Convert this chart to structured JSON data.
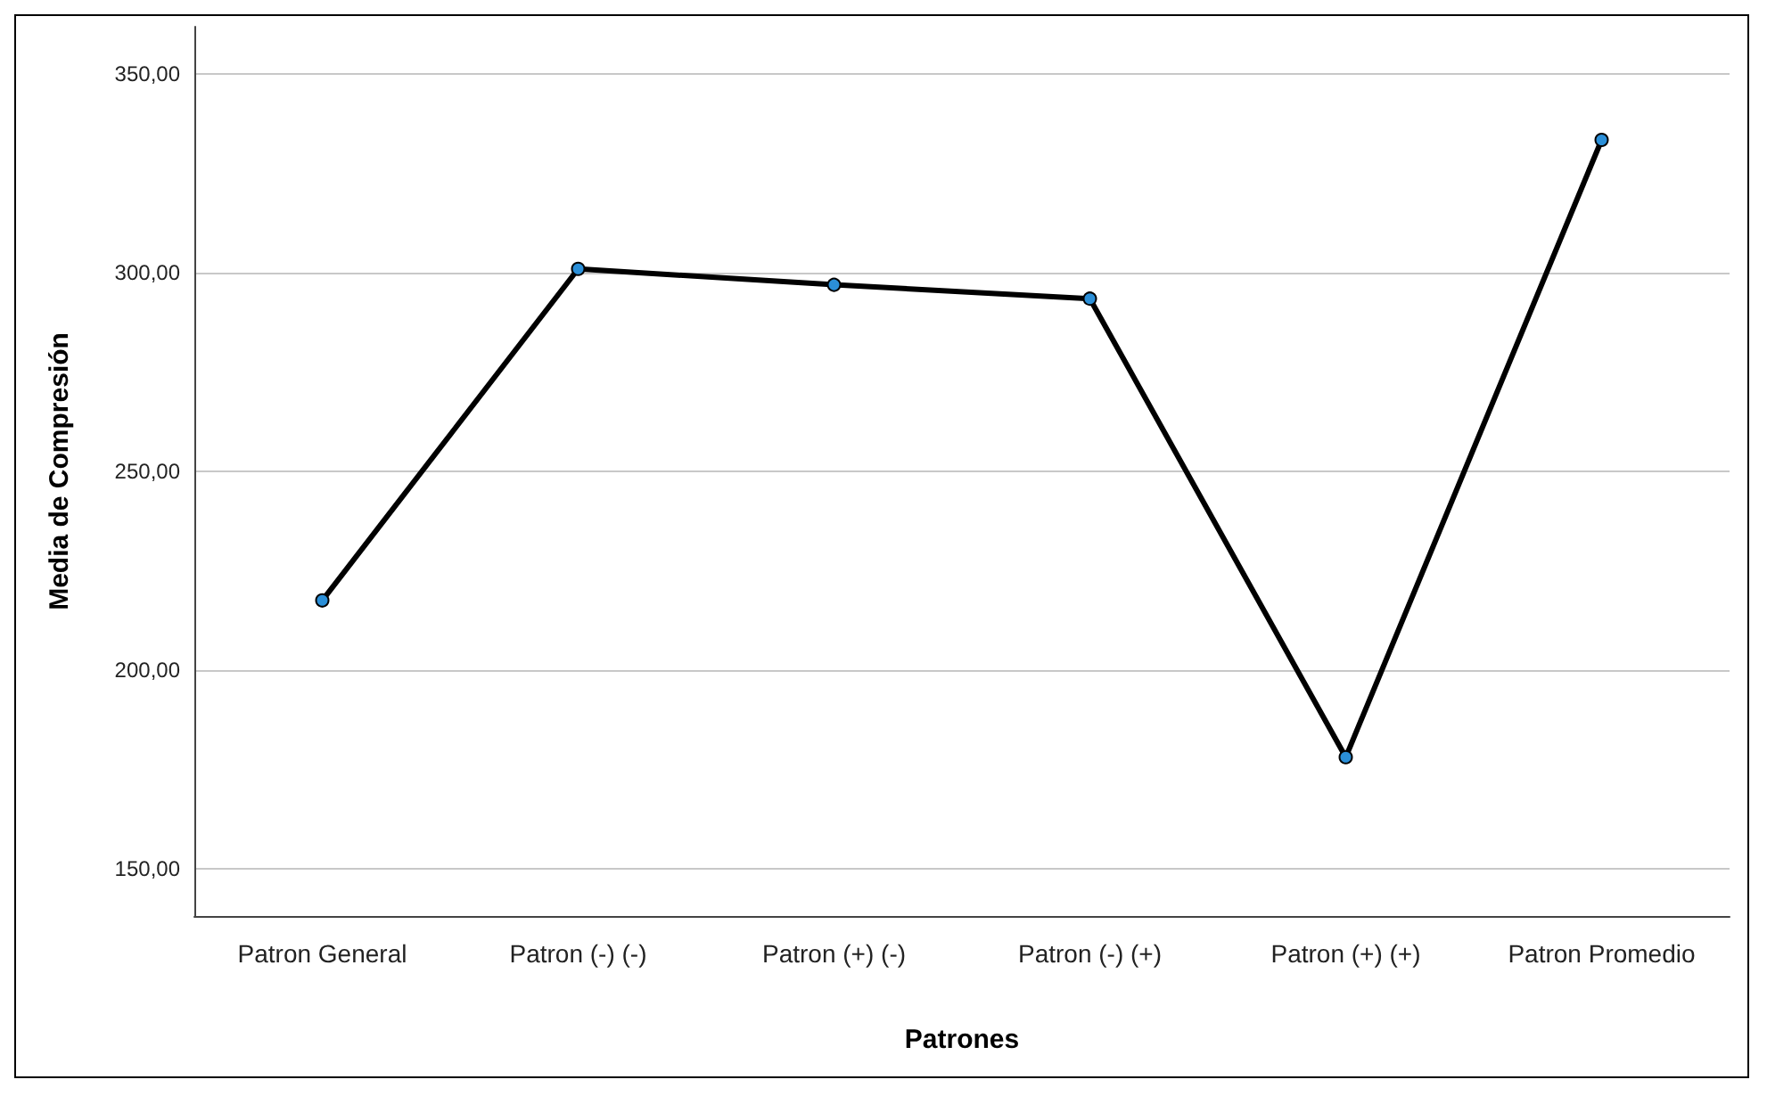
{
  "chart_data": {
    "type": "line",
    "xlabel": "Patrones",
    "ylabel": "Media de Compresión",
    "categories": [
      "Patron General",
      "Patron (-) (-)",
      "Patron (+) (-)",
      "Patron (-) (+)",
      "Patron (+) (+)",
      "Patron Promedio"
    ],
    "series": [
      {
        "color": "#000000",
        "colors": [
          "#2b8fd8",
          "#2b8fd8",
          "#2b8fd8",
          "#2b8fd8",
          "#2b8fd8",
          "#2b8fd8"
        ],
        "values": [
          217.5,
          301,
          297,
          293.5,
          178,
          333.5
        ]
      }
    ],
    "ylim": [
      138,
      362
    ],
    "yticks": [
      {
        "value": 150,
        "label": "150,00"
      },
      {
        "value": 200,
        "label": "200,00"
      },
      {
        "value": 250,
        "label": "250,00"
      },
      {
        "value": 300,
        "label": "300,00"
      },
      {
        "value": 350,
        "label": "350,00"
      }
    ],
    "grid": "y",
    "marker": "circle",
    "line_style": "solid"
  }
}
